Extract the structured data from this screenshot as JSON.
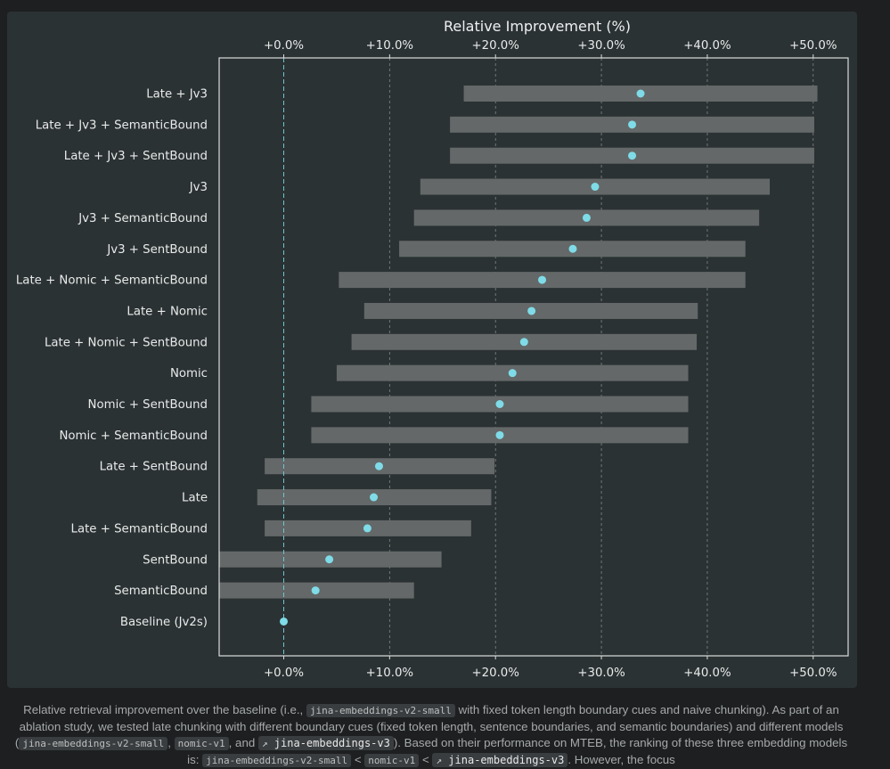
{
  "chart_data": {
    "type": "range-dot",
    "title": "Relative Improvement (%)",
    "xlim": [
      -6.1,
      53.3
    ],
    "xticks": [
      0,
      10,
      20,
      30,
      40,
      50
    ],
    "xtick_labels": [
      "+0.0%",
      "+10.0%",
      "+20.0%",
      "+30.0%",
      "+40.0%",
      "+50.0%"
    ],
    "grid": "vertical dashed",
    "reference_line": 0,
    "colors": {
      "bar": "#646868",
      "dot": "#7fdbe7",
      "ref_line": "#6fc5d4",
      "grid": "#c9cccc"
    },
    "categories": [
      "Late + Jv3",
      "Late + Jv3 + SemanticBound",
      "Late + Jv3 + SentBound",
      "Jv3",
      "Jv3 + SemanticBound",
      "Jv3 + SentBound",
      "Late + Nomic + SemanticBound",
      "Late + Nomic",
      "Late + Nomic + SentBound",
      "Nomic",
      "Nomic + SentBound",
      "Nomic + SemanticBound",
      "Late + SentBound",
      "Late",
      "Late + SemanticBound",
      "SentBound",
      "SemanticBound",
      "Baseline (Jv2s)"
    ],
    "low": [
      17.0,
      15.7,
      15.7,
      12.9,
      12.3,
      10.9,
      5.2,
      7.6,
      6.4,
      5.0,
      2.6,
      2.6,
      -1.8,
      -2.5,
      -1.8,
      -6.1,
      -6.1,
      null
    ],
    "high": [
      50.4,
      50.1,
      50.1,
      45.9,
      44.9,
      43.6,
      43.6,
      39.1,
      39.0,
      38.2,
      38.2,
      38.2,
      19.9,
      19.6,
      17.7,
      14.9,
      12.3,
      null
    ],
    "value": [
      33.7,
      32.9,
      32.9,
      29.4,
      28.6,
      27.3,
      24.4,
      23.4,
      22.7,
      21.6,
      20.4,
      20.4,
      9.0,
      8.5,
      7.9,
      4.3,
      3.0,
      0.0
    ]
  },
  "caption": {
    "p1": "Relative retrieval improvement over the baseline (i.e., ",
    "code1": "jina-embeddings-v2-small",
    "p2": " with fixed token length boundary cues and naive chunking). As part of an ablation study, we tested late chunking with different boundary cues (fixed token length, sentence boundaries, and semantic boundaries) and different models (",
    "code2": "jina-embeddings-v2-small",
    "p3": ", ",
    "code3": "nomic-v1",
    "p4": ", and ",
    "code4": "jina-embeddings-v3",
    "p5": "). Based on their performance on MTEB, the ranking of these three embedding models is: ",
    "code5": "jina-embeddings-v2-small",
    "lt1": "<",
    "code6": "nomic-v1",
    "lt2": "<",
    "code7": "jina-embeddings-v3",
    "p6": ". However, the focus",
    "ext_icon": "external-link-icon"
  }
}
